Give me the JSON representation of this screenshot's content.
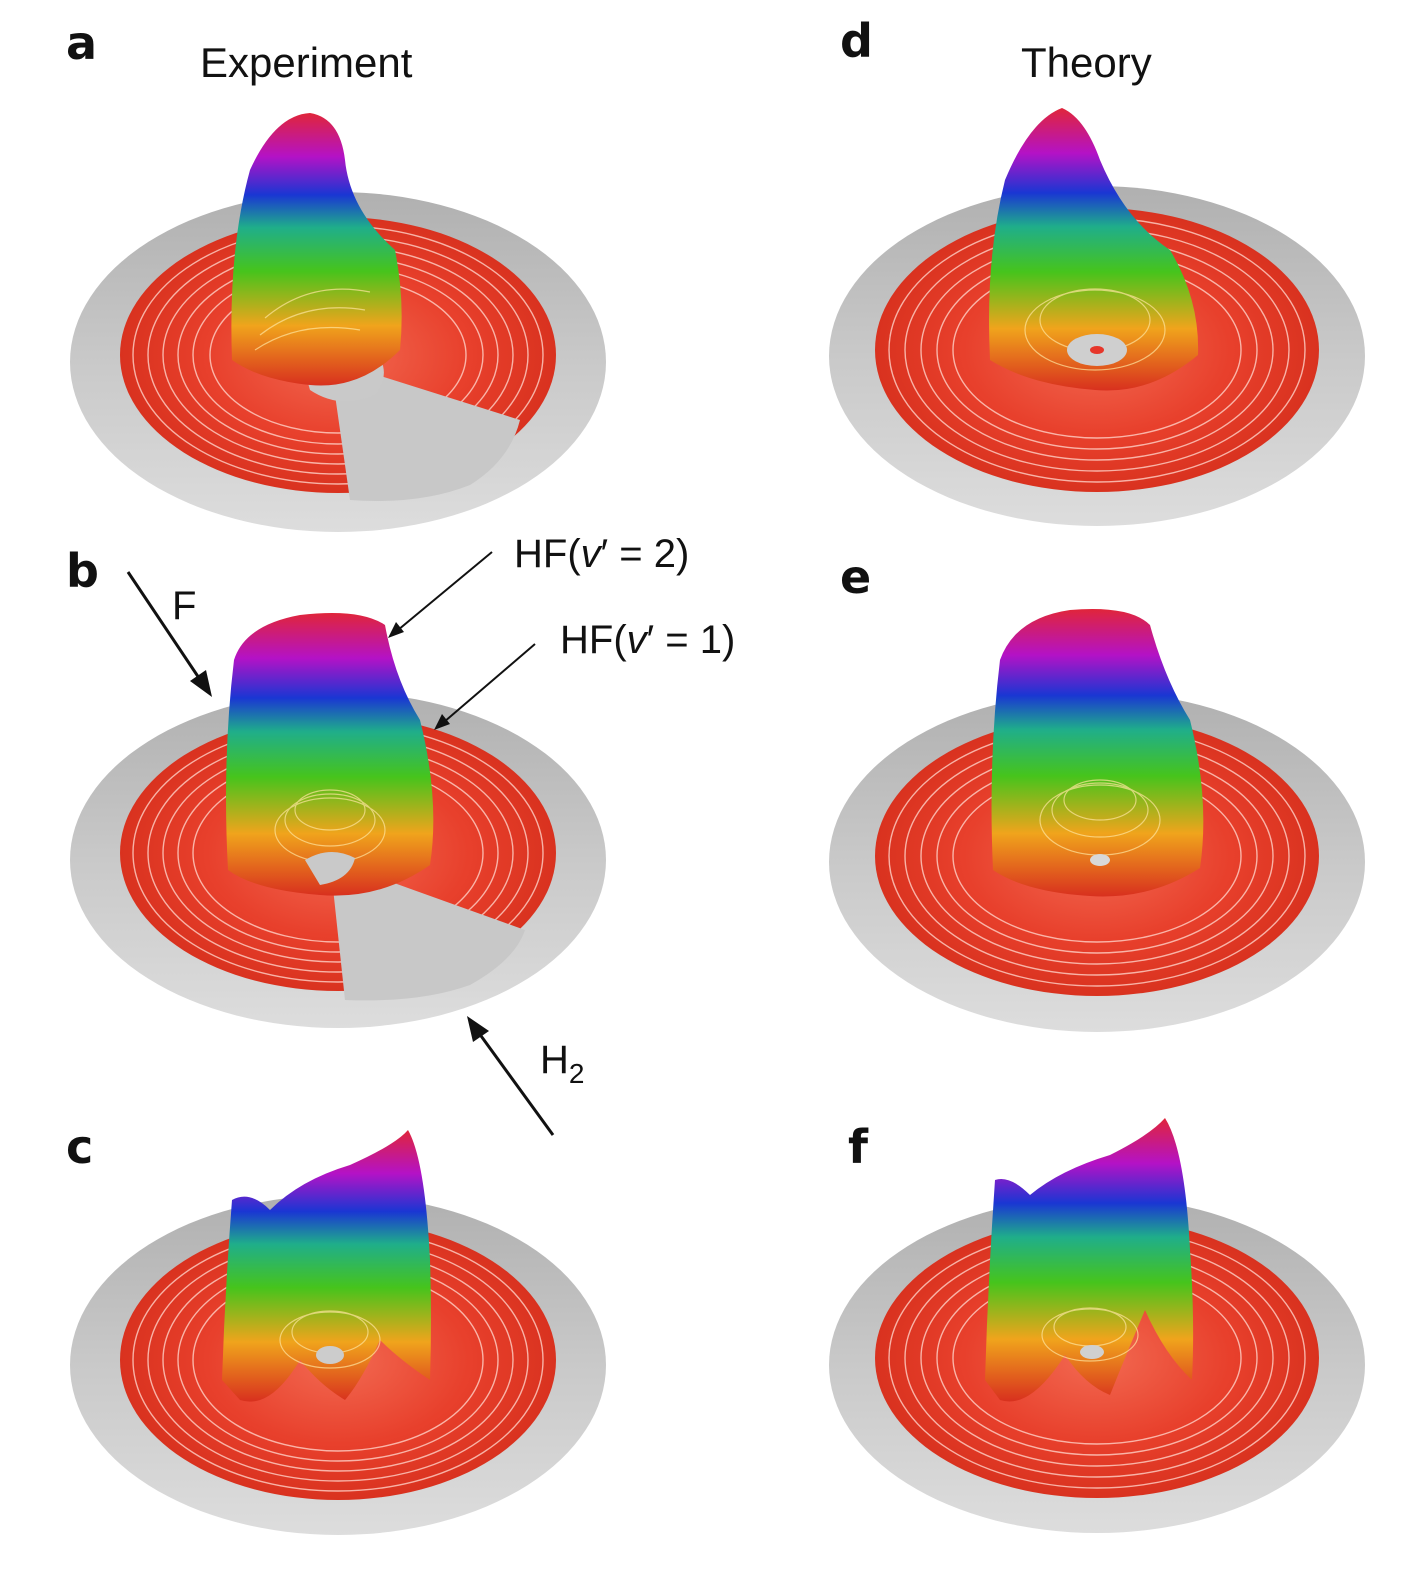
{
  "figure": {
    "columns": [
      {
        "title": "Experiment"
      },
      {
        "title": "Theory"
      }
    ],
    "panels": [
      {
        "letter": "a"
      },
      {
        "letter": "b"
      },
      {
        "letter": "c"
      },
      {
        "letter": "d"
      },
      {
        "letter": "e"
      },
      {
        "letter": "f"
      }
    ],
    "annotations": {
      "hf_v2": {
        "prefix": "HF(",
        "var": "v",
        "rest": "′ = 2)"
      },
      "hf_v1": {
        "prefix": "HF(",
        "var": "v",
        "rest": "′ = 1)"
      },
      "f_beam": "F",
      "h2_beam": {
        "main": "H",
        "sub": "2"
      }
    },
    "colors": {
      "rim": "#c4c4c4",
      "floor": "#e6362a",
      "ring_line": "#ffd9d2",
      "peak_gradient": [
        "#e33a1f",
        "#f2b51d",
        "#37c41b",
        "#1c3fd6",
        "#c012c8",
        "#e0283a"
      ]
    }
  }
}
